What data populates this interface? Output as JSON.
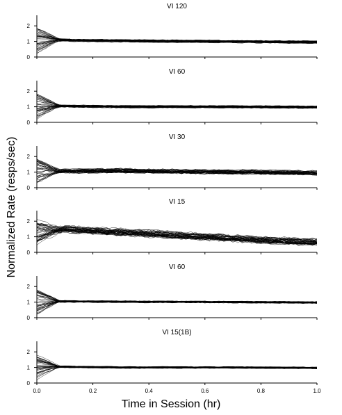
{
  "chart_data": {
    "type": "line",
    "ylabel": "Normalized Rate (resps/sec)",
    "xlabel": "Time in Session (hr)",
    "xlim": [
      0,
      1
    ],
    "ylim": [
      0,
      2.5
    ],
    "x_ticks": [
      "0.0",
      "0.2",
      "0.4",
      "0.6",
      "0.8",
      "1.0"
    ],
    "y_ticks": [
      "0",
      "1",
      "2"
    ],
    "grid": false,
    "line_color": "#000000",
    "panels": [
      {
        "title": "VI 120",
        "series_count": 40,
        "mean_profile": [
          [
            0.0,
            1.05
          ],
          [
            0.05,
            1.1
          ],
          [
            0.2,
            1.05
          ],
          [
            0.6,
            1.0
          ],
          [
            1.0,
            0.95
          ]
        ],
        "spread": 0.15
      },
      {
        "title": "VI 60",
        "series_count": 40,
        "mean_profile": [
          [
            0.0,
            1.0
          ],
          [
            0.05,
            1.05
          ],
          [
            0.3,
            1.0
          ],
          [
            0.6,
            1.0
          ],
          [
            1.0,
            0.97
          ]
        ],
        "spread": 0.15
      },
      {
        "title": "VI 30",
        "series_count": 40,
        "mean_profile": [
          [
            0.0,
            1.05
          ],
          [
            0.3,
            1.1
          ],
          [
            0.5,
            1.05
          ],
          [
            0.8,
            1.0
          ],
          [
            1.0,
            0.95
          ]
        ],
        "spread": 0.25
      },
      {
        "title": "VI 15",
        "series_count": 45,
        "mean_profile": [
          [
            0.0,
            1.3
          ],
          [
            0.1,
            1.5
          ],
          [
            0.3,
            1.3
          ],
          [
            0.6,
            1.0
          ],
          [
            0.8,
            0.8
          ],
          [
            1.0,
            0.65
          ]
        ],
        "spread": 0.4
      },
      {
        "title": "VI 60",
        "series_count": 40,
        "mean_profile": [
          [
            0.0,
            1.0
          ],
          [
            0.05,
            1.05
          ],
          [
            0.3,
            1.02
          ],
          [
            0.7,
            1.0
          ],
          [
            1.0,
            0.97
          ]
        ],
        "spread": 0.12
      },
      {
        "title": "VI 15(1B)",
        "series_count": 40,
        "mean_profile": [
          [
            0.0,
            1.0
          ],
          [
            0.05,
            1.05
          ],
          [
            0.3,
            1.0
          ],
          [
            0.7,
            1.0
          ],
          [
            1.0,
            0.97
          ]
        ],
        "spread": 0.1
      }
    ]
  }
}
